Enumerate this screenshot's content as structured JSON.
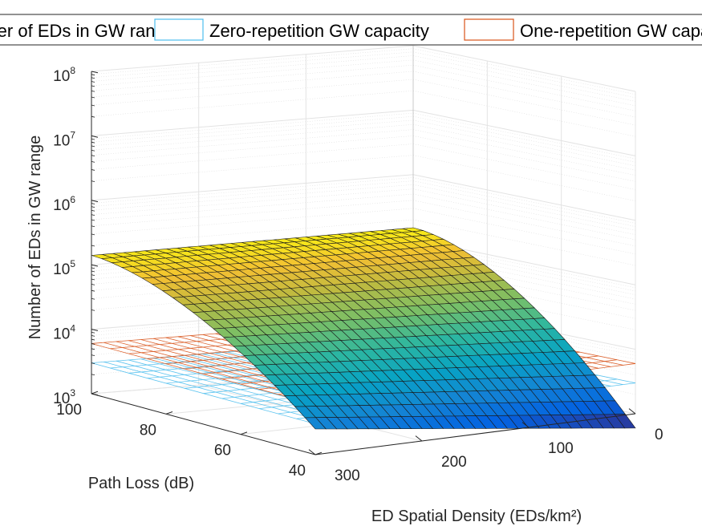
{
  "chart_data": {
    "type": "surface3d",
    "legend": {
      "entries": [
        {
          "label": "Number of EDs in GW range",
          "color": "#3a3d9b"
        },
        {
          "label": "Zero-repetition GW capacity",
          "color": "#4dbeee"
        },
        {
          "label": "One-repetition GW capacity",
          "color": "#d95319"
        }
      ],
      "placement": "top"
    },
    "xlabel": "ED Spatial Density (EDs/km²)",
    "ylabel": "Path Loss (dB)",
    "zlabel": "Number of EDs in GW range",
    "x_ticks": [
      "0",
      "100",
      "200",
      "300"
    ],
    "y_ticks": [
      "40",
      "60",
      "80",
      "100"
    ],
    "z_ticks": [
      {
        "base": "10",
        "exp": "3"
      },
      {
        "base": "10",
        "exp": "4"
      },
      {
        "base": "10",
        "exp": "5"
      },
      {
        "base": "10",
        "exp": "6"
      },
      {
        "base": "10",
        "exp": "7"
      },
      {
        "base": "10",
        "exp": "8"
      }
    ],
    "xlim": [
      0,
      300
    ],
    "ylim": [
      40,
      100
    ],
    "zlim": [
      1000,
      100000000
    ],
    "zscale": "log",
    "grid": true,
    "surface": {
      "colormap": "parula",
      "corners": [
        {
          "density": 300,
          "path_loss": 100,
          "eds": 140000
        },
        {
          "density": 0,
          "path_loss": 100,
          "eds": 150000
        },
        {
          "density": 300,
          "path_loss": 40,
          "eds": 2500
        },
        {
          "density": 0,
          "path_loss": 40,
          "eds": 600
        }
      ]
    },
    "planes": [
      {
        "name": "Zero-repetition GW capacity",
        "value": 3000,
        "color": "#4dbeee"
      },
      {
        "name": "One-repetition GW capacity",
        "value": 6000,
        "color": "#d95319"
      }
    ]
  }
}
